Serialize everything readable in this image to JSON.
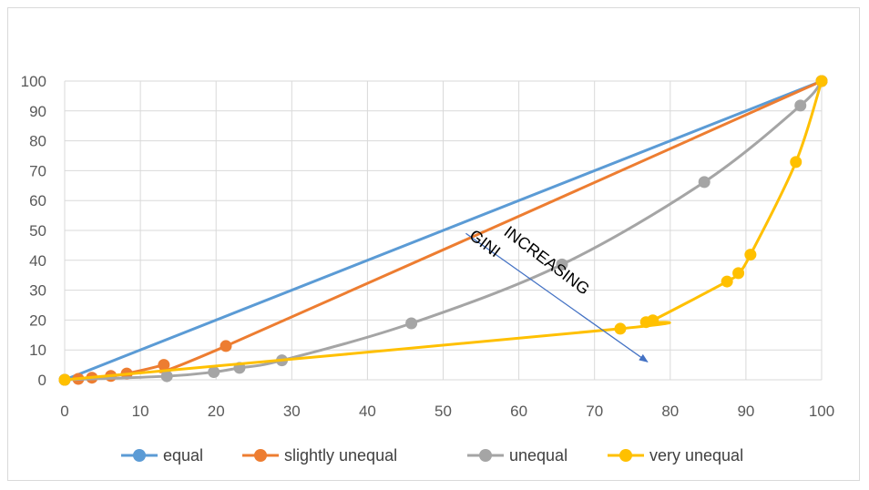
{
  "chart_data": {
    "type": "line",
    "title": "",
    "xlabel": "",
    "ylabel": "",
    "xlim": [
      0,
      100
    ],
    "ylim": [
      0,
      100
    ],
    "xticks": [
      0,
      10,
      20,
      30,
      40,
      50,
      60,
      70,
      80,
      90,
      100
    ],
    "yticks": [
      0,
      10,
      20,
      30,
      40,
      50,
      60,
      70,
      80,
      90,
      100
    ],
    "grid": true,
    "legend_position": "bottom",
    "series": [
      {
        "name": "equal",
        "color": "#5B9BD5",
        "points": [
          [
            0,
            0
          ],
          [
            100,
            100
          ]
        ]
      },
      {
        "name": "slightly unequal",
        "color": "#ED7D31",
        "points": [
          [
            0,
            0
          ],
          [
            1.8,
            0.3
          ],
          [
            3.6,
            0.7
          ],
          [
            6.1,
            1.3
          ],
          [
            8.2,
            2.1
          ],
          [
            13.1,
            5.0
          ],
          [
            21.3,
            11.3
          ],
          [
            100,
            100
          ]
        ]
      },
      {
        "name": "unequal",
        "color": "#A5A5A5",
        "points": [
          [
            0,
            0
          ],
          [
            13.5,
            1.2
          ],
          [
            19.7,
            2.6
          ],
          [
            23.1,
            4.0
          ],
          [
            28.7,
            6.5
          ],
          [
            45.8,
            18.9
          ],
          [
            65.7,
            38.6
          ],
          [
            84.5,
            66.2
          ],
          [
            97.2,
            91.8
          ],
          [
            100,
            100
          ]
        ]
      },
      {
        "name": "very unequal",
        "color": "#FFC000",
        "points": [
          [
            0,
            0
          ],
          [
            73.4,
            17.1
          ],
          [
            76.8,
            19.3
          ],
          [
            77.7,
            19.9
          ],
          [
            87.5,
            32.9
          ],
          [
            89.0,
            35.7
          ],
          [
            90.6,
            41.9
          ],
          [
            96.6,
            72.9
          ],
          [
            100,
            100
          ]
        ]
      }
    ],
    "annotations": [
      {
        "lines": [
          "INCREASING",
          "GINI"
        ],
        "arrow_from": [
          53,
          49
        ],
        "arrow_to": [
          77,
          6
        ]
      }
    ]
  }
}
